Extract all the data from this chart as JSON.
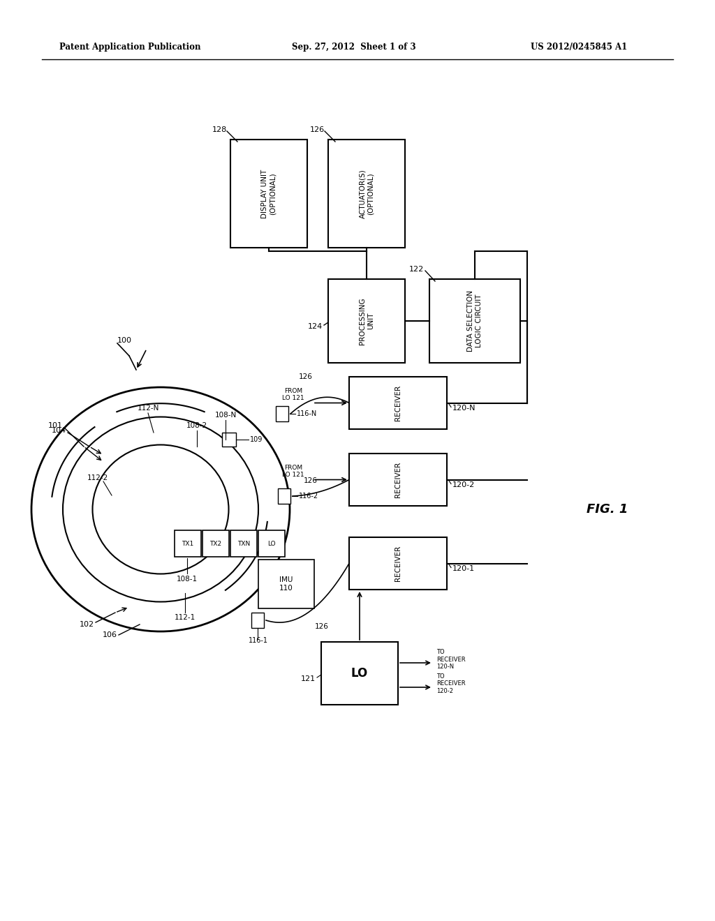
{
  "bg_color": "#ffffff",
  "line_color": "#000000",
  "header_left": "Patent Application Publication",
  "header_mid": "Sep. 27, 2012  Sheet 1 of 3",
  "header_right": "US 2012/0245845 A1",
  "fig_label": "FIG. 1",
  "dslc_text": "DATA SELECTION\nLOGIC CIRCUIT",
  "dslc_label": "122",
  "proc_text": "PROCESSING\nUNIT",
  "proc_label": "124",
  "display_text": "DISPLAY UNIT\n(OPTIONAL)",
  "display_label": "128",
  "actuator_text": "ACTUATOR(S)\n(OPTIONAL)",
  "actuator_label": "126",
  "receiver_text": "RECEIVER",
  "rx_labels": [
    "120-N",
    "120-2",
    "120-1"
  ],
  "lo_text": "LO",
  "lo_label": "121",
  "to_rx_n": "TO\nRECEIVER\n120-N",
  "to_rx_2": "TO\nRECEIVER\n120-2",
  "from_lo": "FROM\nLO 121",
  "imu_text": "IMU\n110",
  "tx1_text": "TX1",
  "tx2_text": "TX2",
  "txn_text": "TXN",
  "lo_small_text": "LO",
  "sys_label": "100",
  "body_label": "101",
  "outer_ring_label": "102",
  "inner_ring_label": "104",
  "ch_labels": [
    "112-N",
    "112-2",
    "112-1"
  ],
  "tx_node_labels": [
    "108-N",
    "108-2",
    "108-1"
  ],
  "waveguide_label": "109",
  "ant_labels": [
    "116-N",
    "116-2",
    "116-1"
  ],
  "body_base_label": "106",
  "conn_label": "126"
}
